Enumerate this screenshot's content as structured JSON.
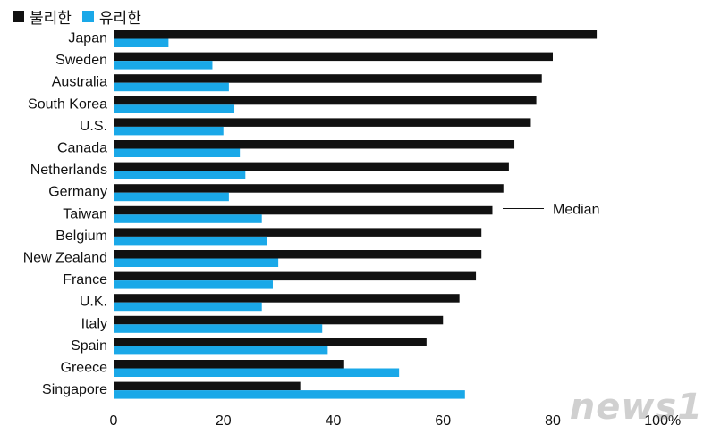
{
  "legend": [
    {
      "label": "불리한",
      "color": "#111111"
    },
    {
      "label": "유리한",
      "color": "#1aa8e8"
    }
  ],
  "watermark": "news1",
  "annotation": "Median",
  "axis_tick_suffix": "%",
  "chart_data": {
    "type": "bar",
    "orientation": "horizontal",
    "title": "",
    "xlabel": "",
    "ylabel": "",
    "xlim": [
      0,
      100
    ],
    "xticks": [
      0,
      20,
      40,
      60,
      80,
      100
    ],
    "categories": [
      "Japan",
      "Sweden",
      "Australia",
      "South Korea",
      "U.S.",
      "Canada",
      "Netherlands",
      "Germany",
      "Taiwan",
      "Belgium",
      "New Zealand",
      "France",
      "U.K.",
      "Italy",
      "Spain",
      "Greece",
      "Singapore"
    ],
    "series": [
      {
        "name": "불리한",
        "color": "#111111",
        "values": [
          88,
          80,
          78,
          77,
          76,
          73,
          72,
          71,
          69,
          67,
          67,
          66,
          63,
          60,
          57,
          42,
          34
        ]
      },
      {
        "name": "유리한",
        "color": "#1aa8e8",
        "values": [
          10,
          18,
          21,
          22,
          20,
          23,
          24,
          21,
          27,
          28,
          30,
          29,
          27,
          38,
          39,
          52,
          64
        ]
      }
    ],
    "median_category": "Taiwan",
    "grid": false
  }
}
